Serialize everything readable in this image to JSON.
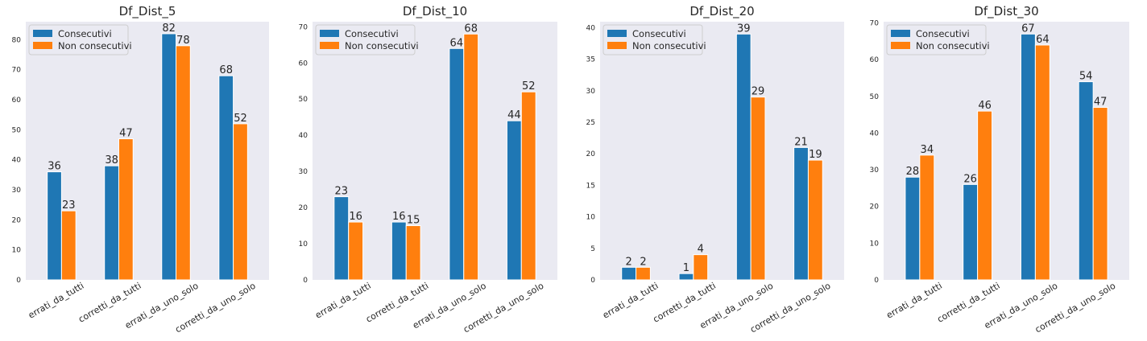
{
  "colors": {
    "consecutivi": "#1f77b4",
    "non_consecutivi": "#ff7f0e",
    "plot_bg": "#eaeaf2"
  },
  "chart_data": [
    {
      "type": "bar",
      "title": "Df_Dist_5",
      "categories": [
        "errati_da_tutti",
        "corretti_da_tutti",
        "errati_da_uno_solo",
        "corretti_da_uno_solo"
      ],
      "series": [
        {
          "name": "Consecutivi",
          "values": [
            36,
            38,
            82,
            68
          ]
        },
        {
          "name": "Non consecutivi",
          "values": [
            23,
            47,
            78,
            52
          ]
        }
      ],
      "ylim": [
        0,
        86
      ],
      "yticks": [
        0,
        10,
        20,
        30,
        40,
        50,
        60,
        70,
        80
      ],
      "legend": "top-left",
      "grid": false
    },
    {
      "type": "bar",
      "title": "Df_Dist_10",
      "categories": [
        "errati_da_tutti",
        "corretti_da_tutti",
        "errati_da_uno_solo",
        "corretti_da_uno_solo"
      ],
      "series": [
        {
          "name": "Consecutivi",
          "values": [
            23,
            16,
            64,
            44
          ]
        },
        {
          "name": "Non consecutivi",
          "values": [
            16,
            15,
            68,
            52
          ]
        }
      ],
      "ylim": [
        0,
        71.4
      ],
      "yticks": [
        0,
        10,
        20,
        30,
        40,
        50,
        60,
        70
      ],
      "legend": "top-left",
      "grid": false
    },
    {
      "type": "bar",
      "title": "Df_Dist_20",
      "categories": [
        "errati_da_tutti",
        "corretti_da_tutti",
        "errati_da_uno_solo",
        "corretti_da_uno_solo"
      ],
      "series": [
        {
          "name": "Consecutivi",
          "values": [
            2,
            1,
            39,
            21
          ]
        },
        {
          "name": "Non consecutivi",
          "values": [
            2,
            4,
            29,
            19
          ]
        }
      ],
      "ylim": [
        0,
        40.95
      ],
      "yticks": [
        0,
        5,
        10,
        15,
        20,
        25,
        30,
        35,
        40
      ],
      "legend": "top-left",
      "grid": false
    },
    {
      "type": "bar",
      "title": "Df_Dist_30",
      "categories": [
        "errati_da_tutti",
        "corretti_da_tutti",
        "errati_da_uno_solo",
        "corretti_da_uno_solo"
      ],
      "series": [
        {
          "name": "Consecutivi",
          "values": [
            28,
            26,
            67,
            54
          ]
        },
        {
          "name": "Non consecutivi",
          "values": [
            34,
            46,
            64,
            47
          ]
        }
      ],
      "ylim": [
        0,
        70.35
      ],
      "yticks": [
        0,
        10,
        20,
        30,
        40,
        50,
        60,
        70
      ],
      "legend": "top-left",
      "grid": false
    }
  ]
}
